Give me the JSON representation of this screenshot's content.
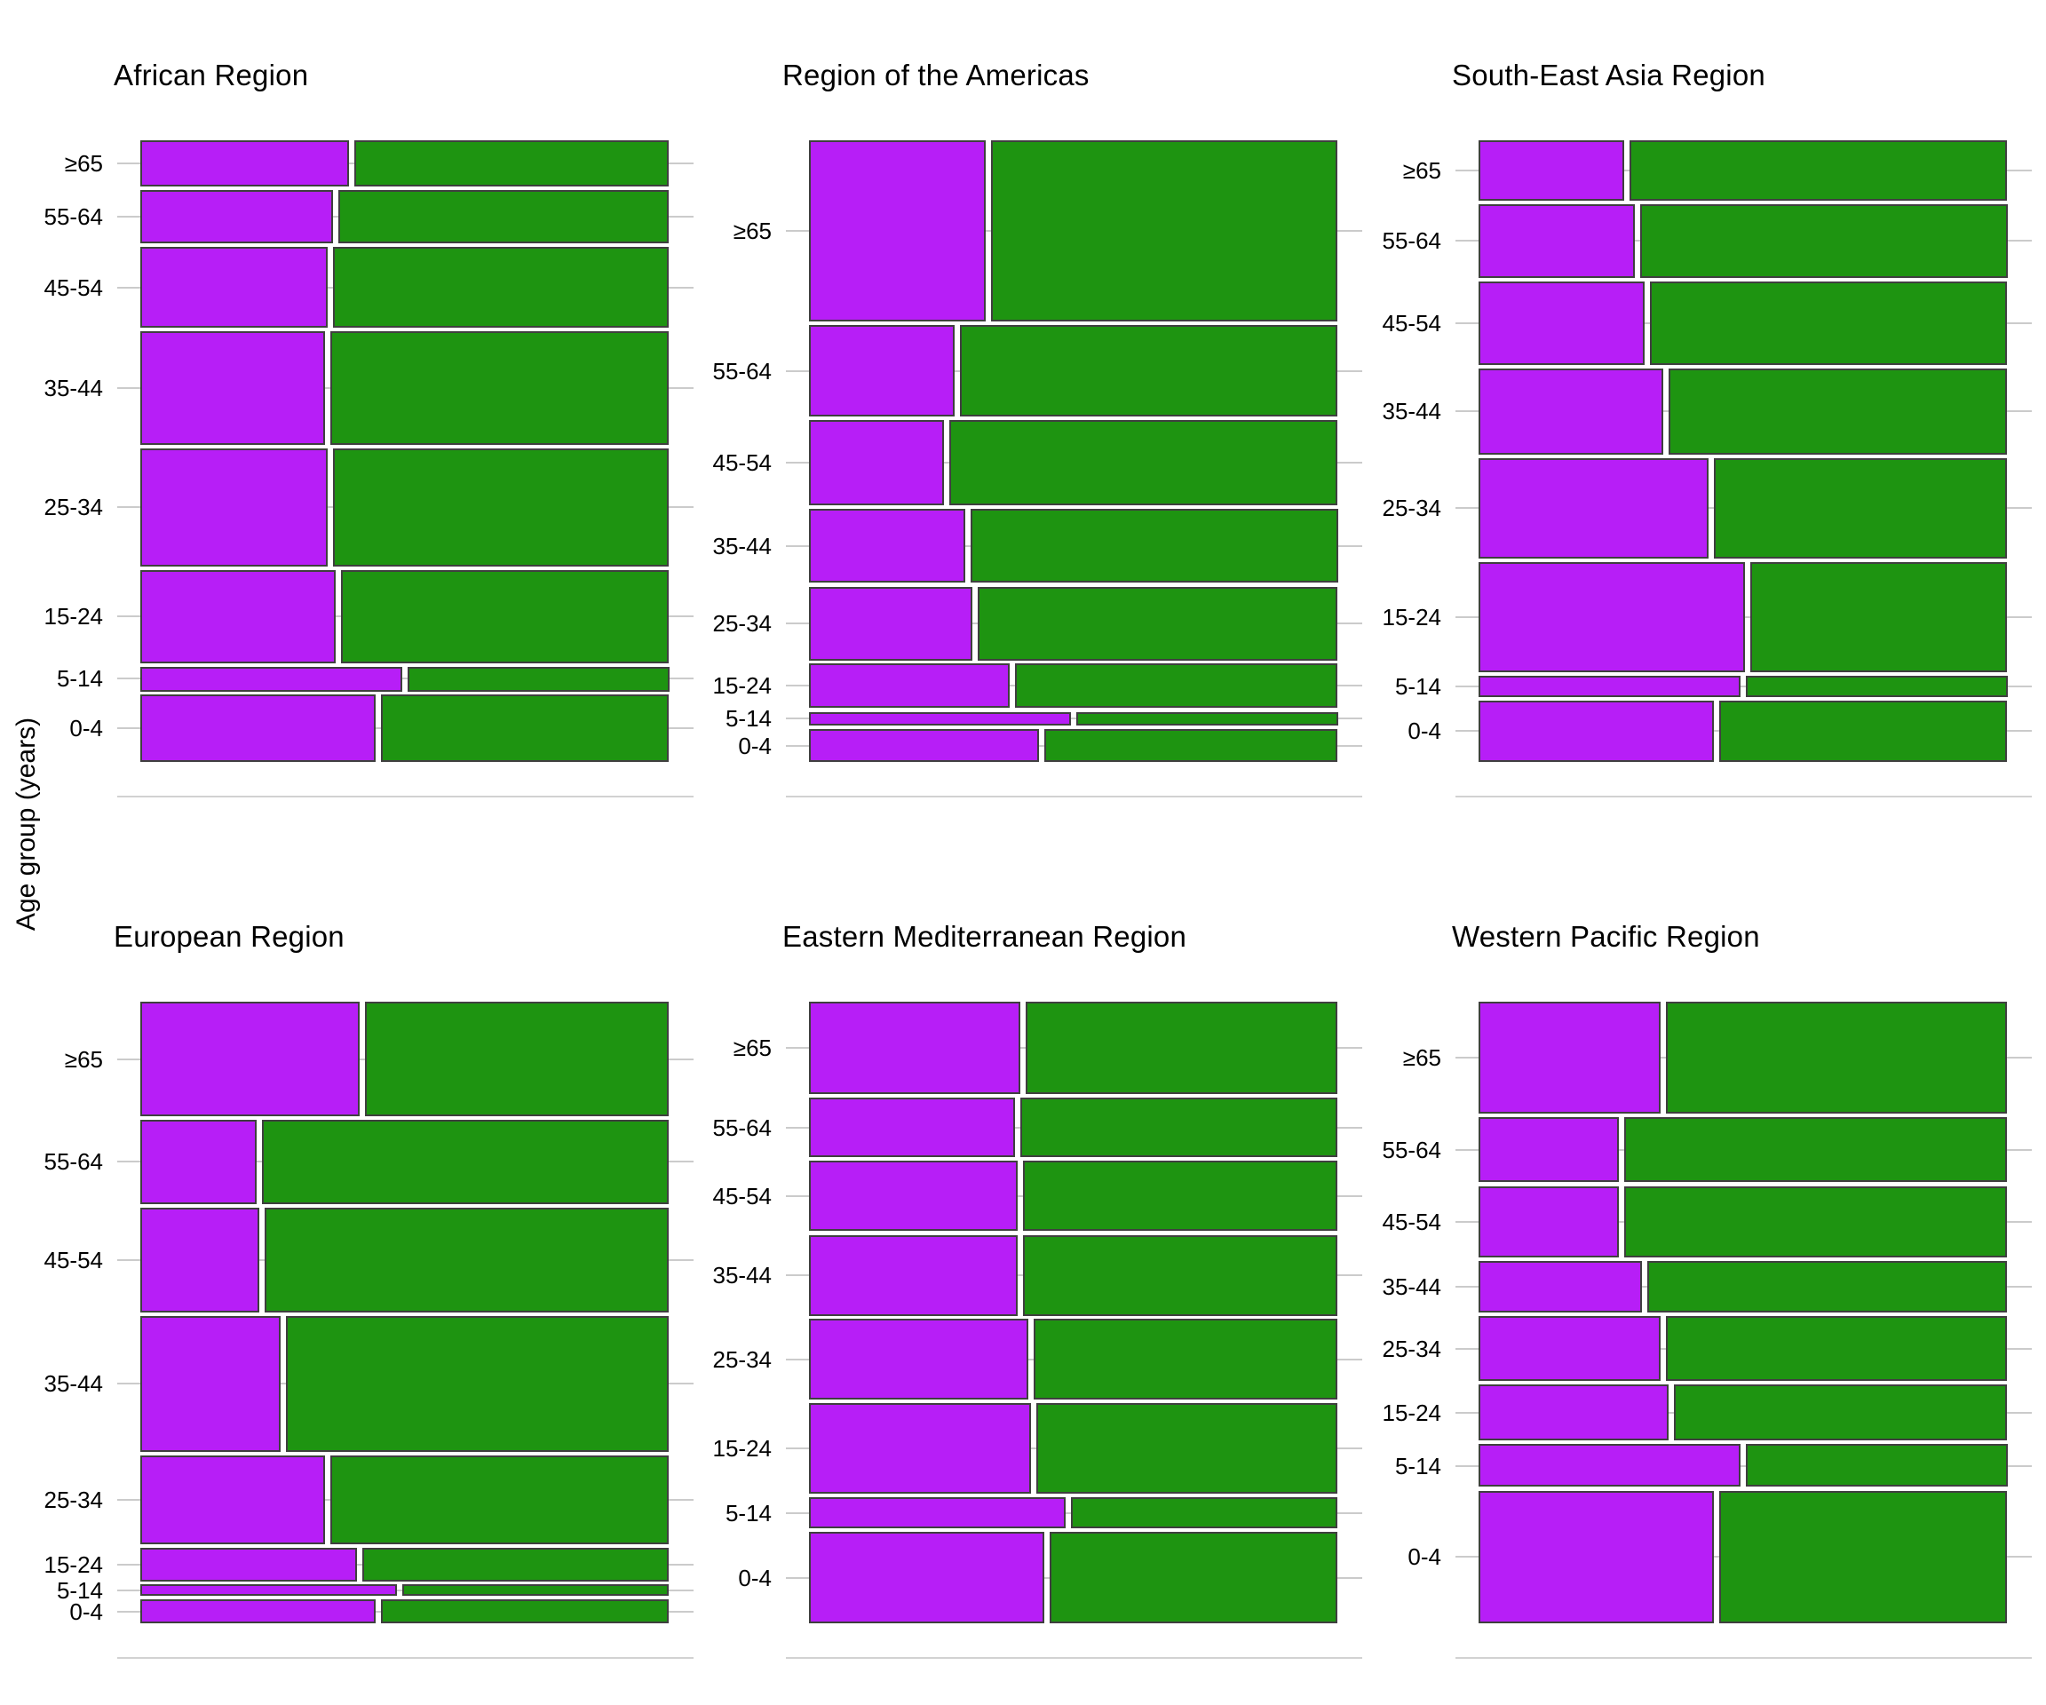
{
  "figure": {
    "y_axis_title": "Age group (years)"
  },
  "chart_data": {
    "type": "mosaic",
    "y_axis_title": "Age group (years)",
    "x_axis_labels_visible": false,
    "grid": "horizontal gridline at each age-group row center",
    "legend_position": "none",
    "age_groups_top_to_bottom": [
      "≥65",
      "55-64",
      "45-54",
      "35-44",
      "25-34",
      "15-24",
      "5-14",
      "0-4"
    ],
    "colors": {
      "purple_segment": "#b71ef7",
      "green_segment": "#1e9411",
      "segment_border": "#3f3f3f",
      "gridline": "#cbcbcb",
      "axis_line": "#d2d2d2",
      "text": "#000000"
    },
    "panels": [
      {
        "title": "African Region",
        "grid_position": {
          "row": 0,
          "col": 0
        },
        "bar_height_shares": [
          0.078,
          0.089,
          0.135,
          0.19,
          0.198,
          0.156,
          0.041,
          0.113
        ],
        "purple_width_fractions": [
          0.4,
          0.37,
          0.36,
          0.355,
          0.36,
          0.375,
          0.5,
          0.45
        ]
      },
      {
        "title": "Region of the Americas",
        "grid_position": {
          "row": 0,
          "col": 1
        },
        "bar_height_shares": [
          0.304,
          0.153,
          0.143,
          0.124,
          0.123,
          0.075,
          0.023,
          0.055
        ],
        "purple_width_fractions": [
          0.34,
          0.28,
          0.26,
          0.3,
          0.315,
          0.385,
          0.5,
          0.44
        ]
      },
      {
        "title": "South-East Asia Region",
        "grid_position": {
          "row": 0,
          "col": 2
        },
        "bar_height_shares": [
          0.101,
          0.123,
          0.14,
          0.145,
          0.168,
          0.184,
          0.036,
          0.103
        ],
        "purple_width_fractions": [
          0.28,
          0.3,
          0.32,
          0.355,
          0.44,
          0.51,
          0.5,
          0.45
        ]
      },
      {
        "title": "European Region",
        "grid_position": {
          "row": 1,
          "col": 0
        },
        "bar_height_shares": [
          0.192,
          0.141,
          0.176,
          0.227,
          0.149,
          0.056,
          0.019,
          0.04
        ],
        "purple_width_fractions": [
          0.42,
          0.225,
          0.23,
          0.27,
          0.355,
          0.415,
          0.49,
          0.45
        ]
      },
      {
        "title": "Eastern Mediterranean Region",
        "grid_position": {
          "row": 1,
          "col": 1
        },
        "bar_height_shares": [
          0.155,
          0.1,
          0.118,
          0.135,
          0.135,
          0.152,
          0.052,
          0.153
        ],
        "purple_width_fractions": [
          0.405,
          0.395,
          0.4,
          0.4,
          0.42,
          0.425,
          0.49,
          0.45
        ]
      },
      {
        "title": "Western Pacific Region",
        "grid_position": {
          "row": 1,
          "col": 2
        },
        "bar_height_shares": [
          0.188,
          0.109,
          0.119,
          0.087,
          0.109,
          0.094,
          0.072,
          0.222
        ],
        "purple_width_fractions": [
          0.35,
          0.27,
          0.27,
          0.315,
          0.35,
          0.365,
          0.5,
          0.45
        ]
      }
    ]
  }
}
